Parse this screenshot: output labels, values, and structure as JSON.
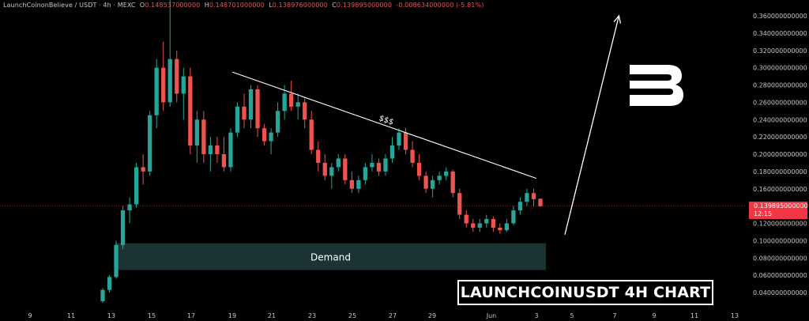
{
  "header": {
    "symbol": "LaunchCoinonBelieve / USDT · 4h · MEXC",
    "open_label": "O",
    "open": "0.148537000000",
    "high_label": "H",
    "high": "0.148701000000",
    "low_label": "L",
    "low": "0.138976000000",
    "close_label": "C",
    "close": "0.139895000000",
    "change": "-0.008634000000 (-5.81%)"
  },
  "price_tag": {
    "price": "0.139895000000",
    "countdown": "12:15"
  },
  "annotations": {
    "trendline_label": "$$$",
    "demand_label": "Demand",
    "chart_title": "LAUNCHCOINUSDT 4H CHART"
  },
  "colors": {
    "background": "#000000",
    "up": "#26a69a",
    "down": "#ef5350",
    "price_tag": "#f23645",
    "demand_zone": "#1b3333",
    "text": "#c8c8c8",
    "trendline": "#ffffff"
  },
  "chart_data": {
    "type": "candlestick",
    "title": "LAUNCHCOINUSDT 4H CHART",
    "y_axis": {
      "ticks": [
        "0.040000000000",
        "0.060000000000",
        "0.080000000000",
        "0.100000000000",
        "0.120000000000",
        "0.140000000000",
        "0.160000000000",
        "0.180000000000",
        "0.200000000000",
        "0.220000000000",
        "0.240000000000",
        "0.260000000000",
        "0.280000000000",
        "0.300000000000",
        "0.320000000000",
        "0.340000000000",
        "0.360000000000"
      ],
      "range": [
        0.03,
        0.37
      ]
    },
    "x_axis": {
      "ticks": [
        "9",
        "11",
        "13",
        "15",
        "17",
        "19",
        "21",
        "23",
        "25",
        "27",
        "29",
        "Jun",
        "3",
        "5",
        "7",
        "9",
        "11",
        "13"
      ]
    },
    "last_price": 0.139895,
    "demand_zone": {
      "from": 0.066,
      "to": 0.097,
      "x_start": "13",
      "x_end": "4"
    },
    "trendline": {
      "from": {
        "x": "19",
        "y": 0.295
      },
      "to": {
        "x": "3",
        "y": 0.172
      }
    },
    "projection_arrow": {
      "from": {
        "x": "4.6",
        "y": 0.107
      },
      "to": {
        "x": "7.2",
        "y": 0.36
      }
    },
    "candles": [
      [
        0.03,
        0.045,
        0.028,
        0.043
      ],
      [
        0.043,
        0.06,
        0.04,
        0.058
      ],
      [
        0.058,
        0.1,
        0.056,
        0.095
      ],
      [
        0.095,
        0.14,
        0.09,
        0.135
      ],
      [
        0.135,
        0.15,
        0.12,
        0.142
      ],
      [
        0.142,
        0.19,
        0.138,
        0.185
      ],
      [
        0.185,
        0.2,
        0.165,
        0.18
      ],
      [
        0.18,
        0.25,
        0.175,
        0.245
      ],
      [
        0.245,
        0.31,
        0.23,
        0.3
      ],
      [
        0.3,
        0.33,
        0.25,
        0.26
      ],
      [
        0.26,
        0.38,
        0.255,
        0.31
      ],
      [
        0.31,
        0.32,
        0.26,
        0.27
      ],
      [
        0.27,
        0.3,
        0.24,
        0.29
      ],
      [
        0.29,
        0.3,
        0.2,
        0.21
      ],
      [
        0.21,
        0.25,
        0.19,
        0.24
      ],
      [
        0.24,
        0.25,
        0.19,
        0.2
      ],
      [
        0.2,
        0.22,
        0.18,
        0.21
      ],
      [
        0.21,
        0.22,
        0.19,
        0.2
      ],
      [
        0.2,
        0.22,
        0.18,
        0.185
      ],
      [
        0.185,
        0.23,
        0.18,
        0.225
      ],
      [
        0.225,
        0.26,
        0.22,
        0.255
      ],
      [
        0.255,
        0.27,
        0.23,
        0.24
      ],
      [
        0.24,
        0.28,
        0.23,
        0.275
      ],
      [
        0.275,
        0.28,
        0.22,
        0.23
      ],
      [
        0.23,
        0.235,
        0.21,
        0.215
      ],
      [
        0.215,
        0.23,
        0.2,
        0.225
      ],
      [
        0.225,
        0.26,
        0.22,
        0.25
      ],
      [
        0.25,
        0.28,
        0.24,
        0.27
      ],
      [
        0.27,
        0.285,
        0.25,
        0.255
      ],
      [
        0.255,
        0.27,
        0.24,
        0.26
      ],
      [
        0.26,
        0.265,
        0.23,
        0.24
      ],
      [
        0.24,
        0.25,
        0.2,
        0.205
      ],
      [
        0.205,
        0.215,
        0.18,
        0.19
      ],
      [
        0.19,
        0.2,
        0.17,
        0.175
      ],
      [
        0.175,
        0.19,
        0.16,
        0.185
      ],
      [
        0.185,
        0.2,
        0.18,
        0.195
      ],
      [
        0.195,
        0.2,
        0.165,
        0.17
      ],
      [
        0.17,
        0.18,
        0.155,
        0.16
      ],
      [
        0.16,
        0.175,
        0.155,
        0.17
      ],
      [
        0.17,
        0.19,
        0.165,
        0.185
      ],
      [
        0.185,
        0.2,
        0.18,
        0.19
      ],
      [
        0.19,
        0.195,
        0.175,
        0.18
      ],
      [
        0.18,
        0.2,
        0.175,
        0.195
      ],
      [
        0.195,
        0.22,
        0.19,
        0.21
      ],
      [
        0.21,
        0.23,
        0.205,
        0.225
      ],
      [
        0.225,
        0.23,
        0.2,
        0.205
      ],
      [
        0.205,
        0.215,
        0.185,
        0.19
      ],
      [
        0.19,
        0.2,
        0.17,
        0.175
      ],
      [
        0.175,
        0.18,
        0.155,
        0.16
      ],
      [
        0.16,
        0.175,
        0.15,
        0.17
      ],
      [
        0.17,
        0.18,
        0.165,
        0.175
      ],
      [
        0.175,
        0.185,
        0.17,
        0.18
      ],
      [
        0.18,
        0.182,
        0.15,
        0.155
      ],
      [
        0.155,
        0.16,
        0.125,
        0.13
      ],
      [
        0.13,
        0.135,
        0.115,
        0.12
      ],
      [
        0.12,
        0.125,
        0.11,
        0.115
      ],
      [
        0.115,
        0.125,
        0.11,
        0.12
      ],
      [
        0.12,
        0.13,
        0.115,
        0.125
      ],
      [
        0.125,
        0.128,
        0.11,
        0.115
      ],
      [
        0.115,
        0.12,
        0.108,
        0.112
      ],
      [
        0.112,
        0.125,
        0.11,
        0.12
      ],
      [
        0.12,
        0.14,
        0.118,
        0.135
      ],
      [
        0.135,
        0.15,
        0.13,
        0.145
      ],
      [
        0.145,
        0.16,
        0.14,
        0.155
      ],
      [
        0.155,
        0.16,
        0.14,
        0.148
      ],
      [
        0.1485,
        0.1487,
        0.139,
        0.1399
      ]
    ]
  }
}
